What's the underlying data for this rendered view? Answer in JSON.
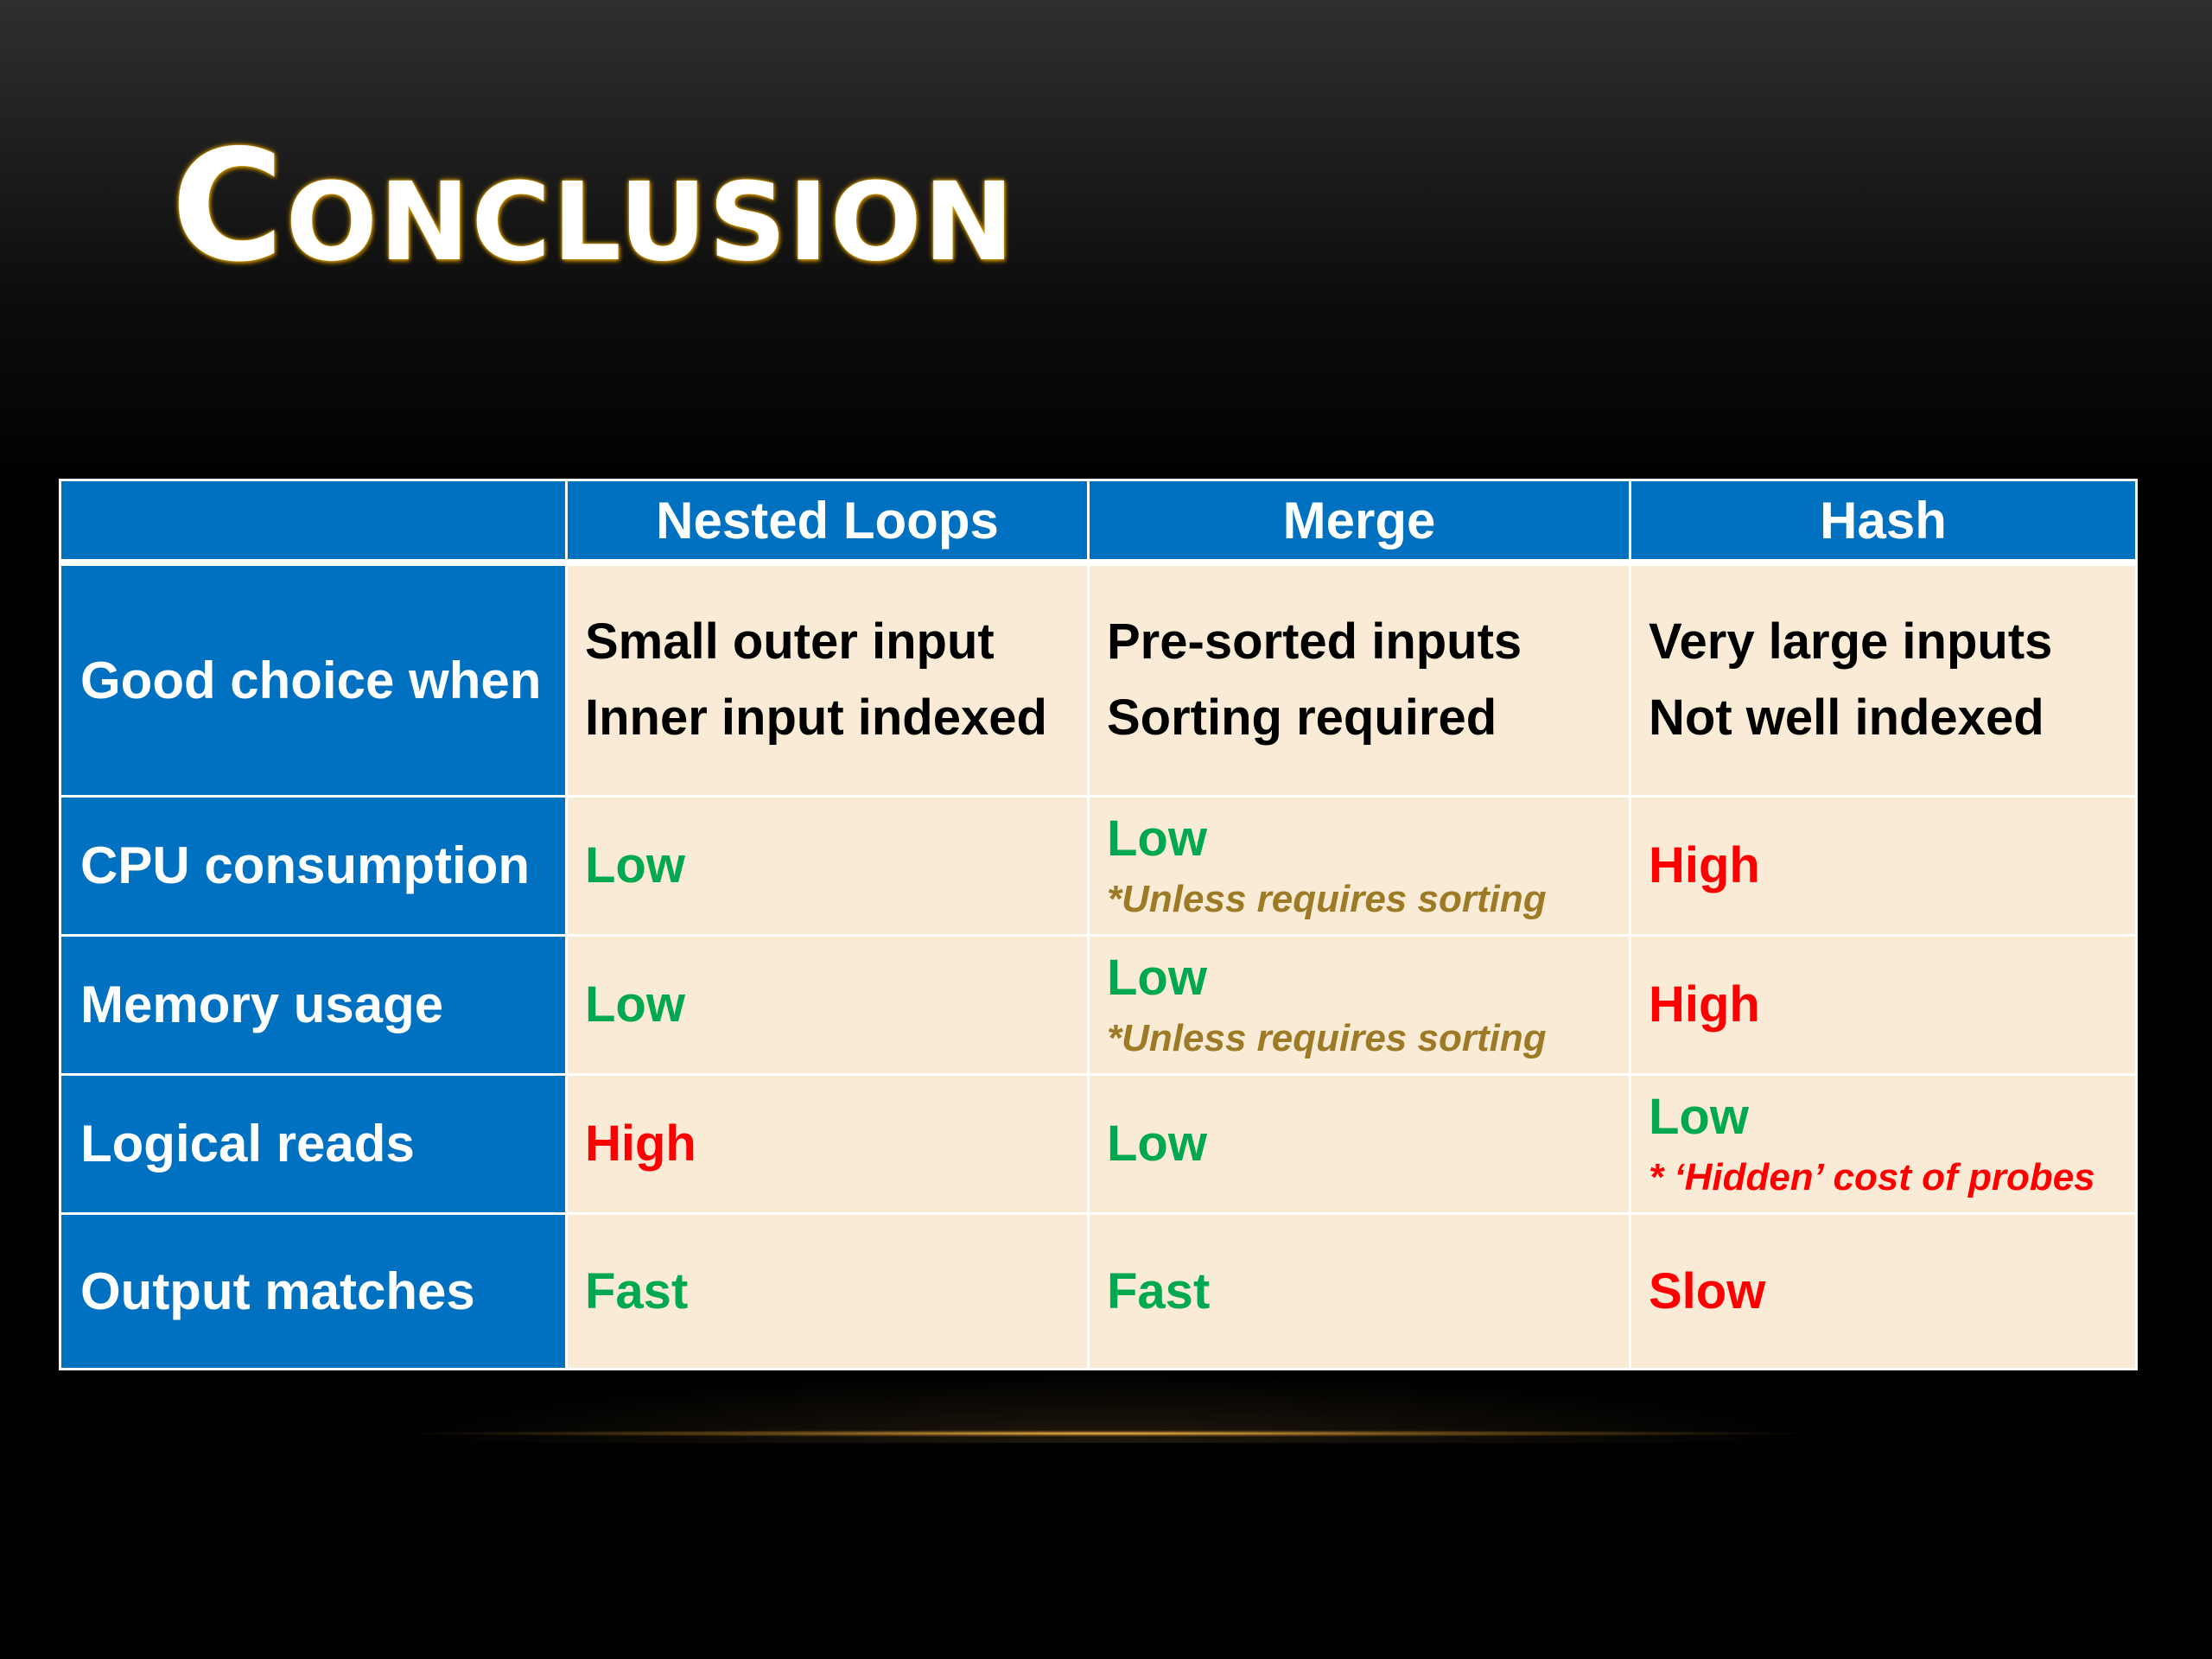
{
  "slide": {
    "title": "Conclusion"
  },
  "table": {
    "headers": [
      "",
      "Nested Loops",
      "Merge",
      "Hash"
    ],
    "rows": [
      {
        "label": "Good choice when",
        "cells": [
          {
            "lines": [
              "Small outer input",
              "Inner input  indexed"
            ]
          },
          {
            "lines": [
              "Pre-sorted inputs",
              "Sorting required"
            ]
          },
          {
            "lines": [
              "Very large inputs",
              "Not well indexed"
            ]
          }
        ]
      },
      {
        "label": "CPU consumption",
        "cells": [
          {
            "value": "Low",
            "color": "#00a94f"
          },
          {
            "value": "Low",
            "color": "#00a94f",
            "note": "*Unless requires sorting",
            "note_color": "#9c7a26"
          },
          {
            "value": "High",
            "color": "#ff0000"
          }
        ]
      },
      {
        "label": "Memory usage",
        "cells": [
          {
            "value": "Low",
            "color": "#00a94f"
          },
          {
            "value": "Low",
            "color": "#00a94f",
            "note": "*Unless requires sorting",
            "note_color": "#9c7a26"
          },
          {
            "value": "High",
            "color": "#ff0000"
          }
        ]
      },
      {
        "label": "Logical reads",
        "cells": [
          {
            "value": "High",
            "color": "#ff0000"
          },
          {
            "value": "Low",
            "color": "#00a94f"
          },
          {
            "value": "Low",
            "color": "#00a94f",
            "note": "* ‘Hidden’ cost of probes",
            "note_color": "#ff0000"
          }
        ]
      },
      {
        "label": "Output matches",
        "cells": [
          {
            "value": "Fast",
            "color": "#00a94f"
          },
          {
            "value": "Fast",
            "color": "#00a94f"
          },
          {
            "value": "Slow",
            "color": "#ff0000"
          }
        ]
      }
    ]
  },
  "colors": {
    "header_blue": "#0070c0",
    "cell_cream": "#f9ebd5",
    "good_green": "#00a94f",
    "bad_red": "#ff0000",
    "note_gold": "#9c7a26",
    "title_glow": "#e0a000"
  }
}
